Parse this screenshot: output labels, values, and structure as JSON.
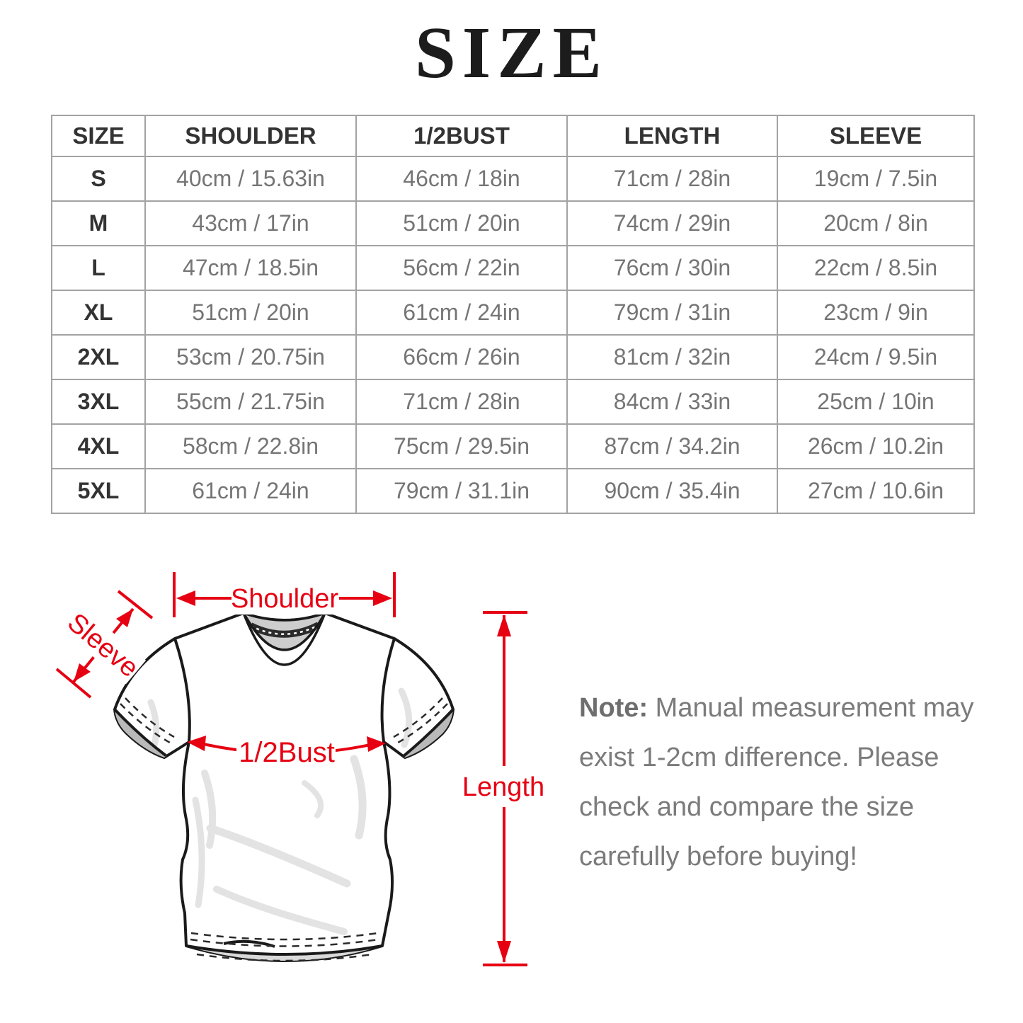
{
  "title": "SIZE",
  "accent_color": "#e60012",
  "table": {
    "headers": [
      "SIZE",
      "SHOULDER",
      "1/2BUST",
      "LENGTH",
      "SLEEVE"
    ],
    "rows": [
      [
        "S",
        "40cm / 15.63in",
        "46cm / 18in",
        "71cm / 28in",
        "19cm / 7.5in"
      ],
      [
        "M",
        "43cm / 17in",
        "51cm / 20in",
        "74cm / 29in",
        "20cm / 8in"
      ],
      [
        "L",
        "47cm / 18.5in",
        "56cm / 22in",
        "76cm / 30in",
        "22cm / 8.5in"
      ],
      [
        "XL",
        "51cm / 20in",
        "61cm / 24in",
        "79cm / 31in",
        "23cm / 9in"
      ],
      [
        "2XL",
        "53cm / 20.75in",
        "66cm / 26in",
        "81cm / 32in",
        "24cm / 9.5in"
      ],
      [
        "3XL",
        "55cm / 21.75in",
        "71cm / 28in",
        "84cm / 33in",
        "25cm / 10in"
      ],
      [
        "4XL",
        "58cm / 22.8in",
        "75cm / 29.5in",
        "87cm / 34.2in",
        "26cm / 10.2in"
      ],
      [
        "5XL",
        "61cm / 24in",
        "79cm / 31.1in",
        "90cm / 35.4in",
        "27cm / 10.6in"
      ]
    ]
  },
  "diagram": {
    "labels": {
      "shoulder": "Shoulder",
      "sleeve": "Sleeve",
      "bust": "1/2Bust",
      "length": "Length"
    }
  },
  "note": {
    "prefix": "Note:",
    "line1": " Manual measurement may",
    "line2": "exist 1-2cm difference. Please",
    "line3": "check and compare the size",
    "line4": "carefully before buying!"
  }
}
